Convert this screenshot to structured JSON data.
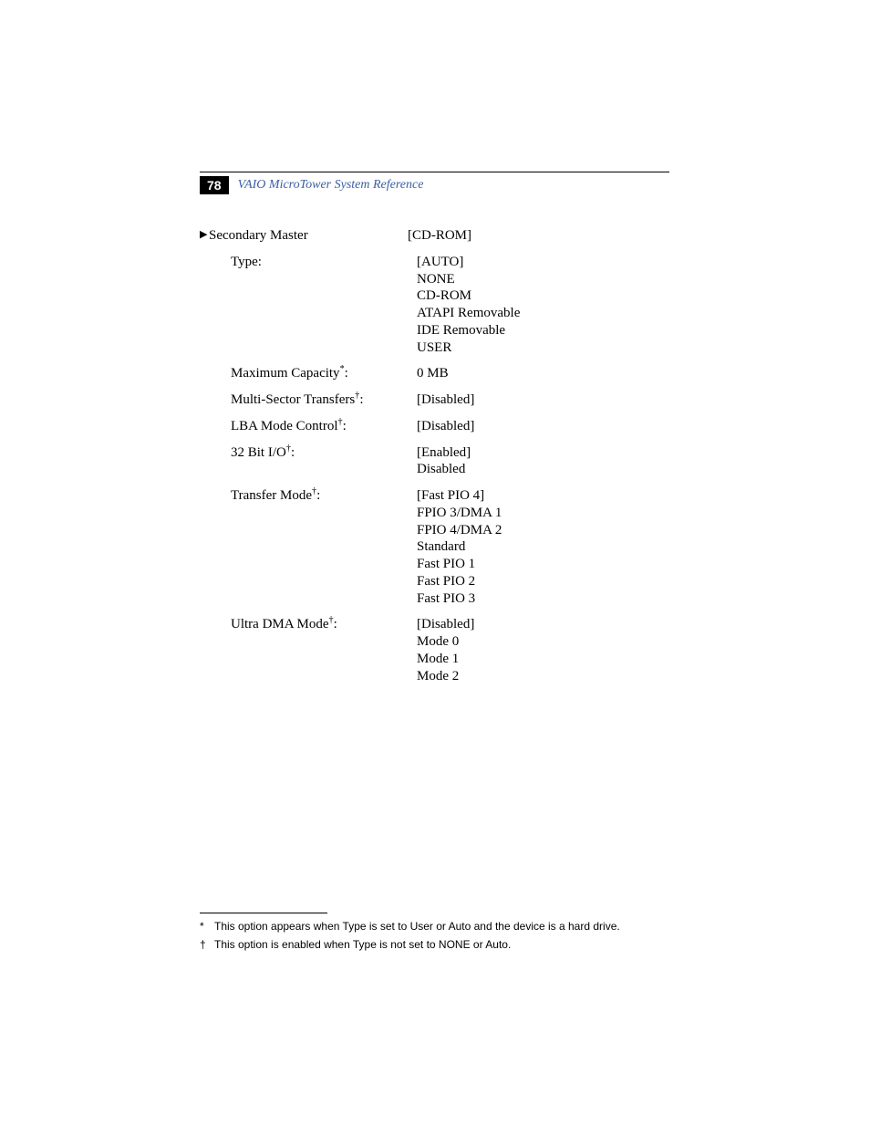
{
  "header": {
    "page_number": "78",
    "title": "VAIO MicroTower System Reference",
    "title_color": "#3b5fa5"
  },
  "section": {
    "heading_label": "Secondary Master",
    "heading_value": "[CD-ROM]",
    "rows": [
      {
        "label": "Type:",
        "sup": "",
        "values": [
          "[AUTO]",
          "NONE",
          "CD-ROM",
          "ATAPI Removable",
          "IDE Removable",
          "USER"
        ]
      },
      {
        "label": "Maximum Capacity",
        "sup": "*",
        "label_suffix": ":",
        "values": [
          "0 MB"
        ]
      },
      {
        "label": "Multi-Sector Transfers",
        "sup": "†",
        "label_suffix": ":",
        "values": [
          "[Disabled]"
        ]
      },
      {
        "label": "LBA Mode Control",
        "sup": "†",
        "label_suffix": ":",
        "values": [
          "[Disabled]"
        ]
      },
      {
        "label": "32 Bit I/O",
        "sup": "†",
        "label_suffix": ":",
        "values": [
          "[Enabled]",
          "Disabled"
        ]
      },
      {
        "label": "Transfer Mode",
        "sup": "†",
        "label_suffix": ":",
        "values": [
          "[Fast PIO 4]",
          "FPIO 3/DMA 1",
          "FPIO 4/DMA 2",
          "Standard",
          "Fast PIO 1",
          "Fast PIO 2",
          "Fast PIO 3"
        ]
      },
      {
        "label": "Ultra DMA Mode",
        "sup": "†",
        "label_suffix": ":",
        "values": [
          "[Disabled]",
          "Mode 0",
          "Mode 1",
          "Mode 2"
        ]
      }
    ]
  },
  "footnotes": [
    {
      "symbol": "*",
      "text": "This option appears when Type is set to User or Auto and the device is a hard drive."
    },
    {
      "symbol": "†",
      "text": "This option is enabled when Type is not set to NONE or Auto."
    }
  ]
}
